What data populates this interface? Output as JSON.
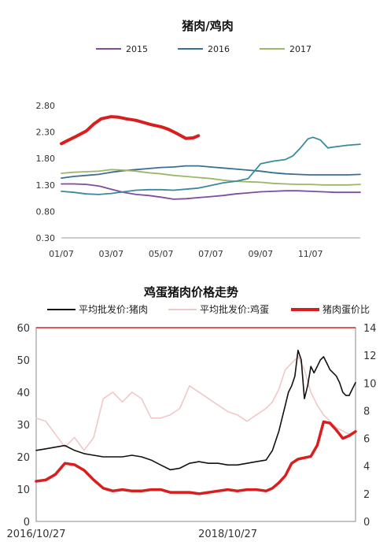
{
  "chart_data": [
    {
      "type": "line",
      "title": "猪肉/鸡肉",
      "x_ticks": [
        "01/07",
        "03/07",
        "05/07",
        "07/07",
        "09/07",
        "11/07"
      ],
      "y_ticks": [
        "2.80",
        "2.30",
        "1.80",
        "1.30",
        "0.80",
        "0.30"
      ],
      "ylim": [
        0.3,
        2.8
      ],
      "xlim": [
        1,
        13
      ],
      "grid": false,
      "legend": "top",
      "series": [
        {
          "name": "2015",
          "color": "#7d4d9e",
          "x": [
            1,
            1.5,
            2,
            2.5,
            3,
            3.5,
            4,
            4.5,
            5,
            5.5,
            6,
            6.5,
            7,
            7.5,
            8,
            8.5,
            9,
            9.5,
            10,
            10.5,
            11,
            11.5,
            12,
            12.5,
            13
          ],
          "values": [
            1.32,
            1.32,
            1.31,
            1.28,
            1.22,
            1.16,
            1.12,
            1.1,
            1.07,
            1.03,
            1.04,
            1.06,
            1.08,
            1.1,
            1.13,
            1.15,
            1.17,
            1.18,
            1.19,
            1.19,
            1.18,
            1.17,
            1.16,
            1.16,
            1.16
          ]
        },
        {
          "name": "2016",
          "color": "#3a6f94",
          "x": [
            1,
            1.5,
            2,
            2.5,
            3,
            3.5,
            4,
            4.5,
            5,
            5.5,
            6,
            6.5,
            7,
            7.5,
            8,
            8.5,
            9,
            9.5,
            10,
            10.5,
            11,
            11.5,
            12,
            12.5,
            13
          ],
          "values": [
            1.43,
            1.46,
            1.48,
            1.5,
            1.54,
            1.57,
            1.59,
            1.61,
            1.63,
            1.64,
            1.66,
            1.66,
            1.64,
            1.62,
            1.6,
            1.58,
            1.56,
            1.53,
            1.51,
            1.5,
            1.49,
            1.49,
            1.49,
            1.49,
            1.5
          ]
        },
        {
          "name": "2017",
          "color": "#9cb66a",
          "x": [
            1,
            1.5,
            2,
            2.5,
            3,
            3.5,
            4,
            4.5,
            5,
            5.5,
            6,
            6.5,
            7,
            7.5,
            8,
            8.5,
            9,
            9.5,
            10,
            10.5,
            11,
            11.5,
            12,
            12.5,
            13
          ],
          "values": [
            1.52,
            1.54,
            1.55,
            1.56,
            1.59,
            1.58,
            1.56,
            1.53,
            1.51,
            1.48,
            1.46,
            1.44,
            1.42,
            1.39,
            1.37,
            1.36,
            1.35,
            1.33,
            1.32,
            1.31,
            1.31,
            1.3,
            1.3,
            1.3,
            1.31
          ]
        },
        {
          "name": "",
          "color": "#3a8a9a",
          "x": [
            1,
            1.5,
            2,
            2.5,
            3,
            3.5,
            4,
            4.5,
            5,
            5.5,
            6,
            6.5,
            7,
            7.5,
            8,
            8.5,
            9,
            9.5,
            10,
            10.3,
            10.6,
            10.9,
            11.1,
            11.4,
            11.7,
            12,
            12.5,
            13
          ],
          "values": [
            1.18,
            1.16,
            1.13,
            1.12,
            1.14,
            1.17,
            1.2,
            1.21,
            1.21,
            1.2,
            1.22,
            1.24,
            1.29,
            1.34,
            1.37,
            1.42,
            1.7,
            1.75,
            1.78,
            1.85,
            2.0,
            2.17,
            2.2,
            2.15,
            2.0,
            2.02,
            2.05,
            2.07
          ]
        },
        {
          "name": "",
          "color": "#d91e1e",
          "bold": true,
          "x": [
            1,
            1.3,
            1.6,
            2,
            2.3,
            2.6,
            3,
            3.3,
            3.6,
            4,
            4.3,
            4.6,
            5,
            5.3,
            5.6,
            6,
            6.3,
            6.5
          ],
          "values": [
            2.08,
            2.15,
            2.22,
            2.32,
            2.45,
            2.55,
            2.59,
            2.58,
            2.55,
            2.52,
            2.48,
            2.44,
            2.4,
            2.35,
            2.28,
            2.18,
            2.19,
            2.23
          ]
        }
      ]
    },
    {
      "type": "line",
      "title": "鸡蛋猪肉价格走势",
      "x_ticks": [
        "2016/10/27",
        "2018/10/27"
      ],
      "y_left_ticks": [
        "60",
        "50",
        "40",
        "30",
        "20",
        "10",
        "0"
      ],
      "y_right_ticks": [
        "14",
        "12",
        "10",
        "8",
        "6",
        "4",
        "2",
        "0"
      ],
      "ylim_left": [
        0,
        60
      ],
      "ylim_right": [
        0,
        14
      ],
      "xlim": [
        0,
        100
      ],
      "legend": "top",
      "series": [
        {
          "name": "平均批发价:猪肉",
          "color": "#111111",
          "axis": "left",
          "x": [
            0,
            3,
            6,
            9,
            12,
            15,
            18,
            21,
            24,
            27,
            30,
            33,
            36,
            39,
            42,
            45,
            48,
            51,
            54,
            57,
            60,
            63,
            66,
            69,
            72,
            74,
            76,
            78,
            79,
            80,
            81,
            82,
            83,
            84,
            85,
            86,
            87,
            88,
            89,
            90,
            91,
            92,
            93,
            94,
            95,
            96,
            97,
            98,
            99,
            100
          ],
          "values": [
            22,
            22.5,
            23,
            23.5,
            22,
            21,
            20.5,
            20,
            20,
            20,
            20.5,
            20,
            19,
            17.5,
            16,
            16.5,
            18,
            18.5,
            18,
            18,
            17.5,
            17.5,
            18,
            18.5,
            19,
            22,
            28,
            36,
            40,
            42,
            45,
            53,
            50,
            38,
            42,
            48,
            46,
            48,
            50,
            51,
            49,
            47,
            46,
            45,
            43,
            40,
            39,
            39,
            41,
            43
          ]
        },
        {
          "name": "平均批发价:鸡蛋",
          "color": "#f0c8c8",
          "axis": "left",
          "x": [
            0,
            3,
            6,
            9,
            12,
            15,
            18,
            21,
            24,
            27,
            30,
            33,
            36,
            39,
            42,
            45,
            48,
            51,
            54,
            57,
            60,
            63,
            66,
            69,
            72,
            74,
            76,
            78,
            80,
            82,
            84,
            86,
            88,
            90,
            92,
            94,
            96,
            98,
            100
          ],
          "values": [
            32,
            31,
            27,
            23,
            26,
            22,
            26,
            38,
            40,
            37,
            40,
            38,
            32,
            32,
            33,
            35,
            42,
            40,
            38,
            36,
            34,
            33,
            31,
            33,
            35,
            37,
            41,
            47,
            49,
            51,
            47,
            40,
            36,
            33,
            31,
            29,
            28,
            27,
            28
          ]
        },
        {
          "name": "猪肉蛋价比",
          "color": "#d91e1e",
          "axis": "right",
          "bold": true,
          "x": [
            0,
            3,
            6,
            9,
            12,
            15,
            18,
            21,
            24,
            27,
            30,
            33,
            36,
            39,
            42,
            45,
            48,
            51,
            54,
            57,
            60,
            63,
            66,
            69,
            72,
            74,
            76,
            78,
            80,
            82,
            84,
            86,
            88,
            90,
            92,
            94,
            96,
            98,
            100
          ],
          "values": [
            2.9,
            3.0,
            3.4,
            4.2,
            4.1,
            3.7,
            3.0,
            2.4,
            2.2,
            2.3,
            2.2,
            2.2,
            2.3,
            2.3,
            2.1,
            2.1,
            2.1,
            2.0,
            2.1,
            2.2,
            2.3,
            2.2,
            2.3,
            2.3,
            2.2,
            2.4,
            2.8,
            3.3,
            4.2,
            4.5,
            4.6,
            4.7,
            5.5,
            7.2,
            7.1,
            6.6,
            6.0,
            6.2,
            6.5
          ]
        }
      ]
    }
  ]
}
